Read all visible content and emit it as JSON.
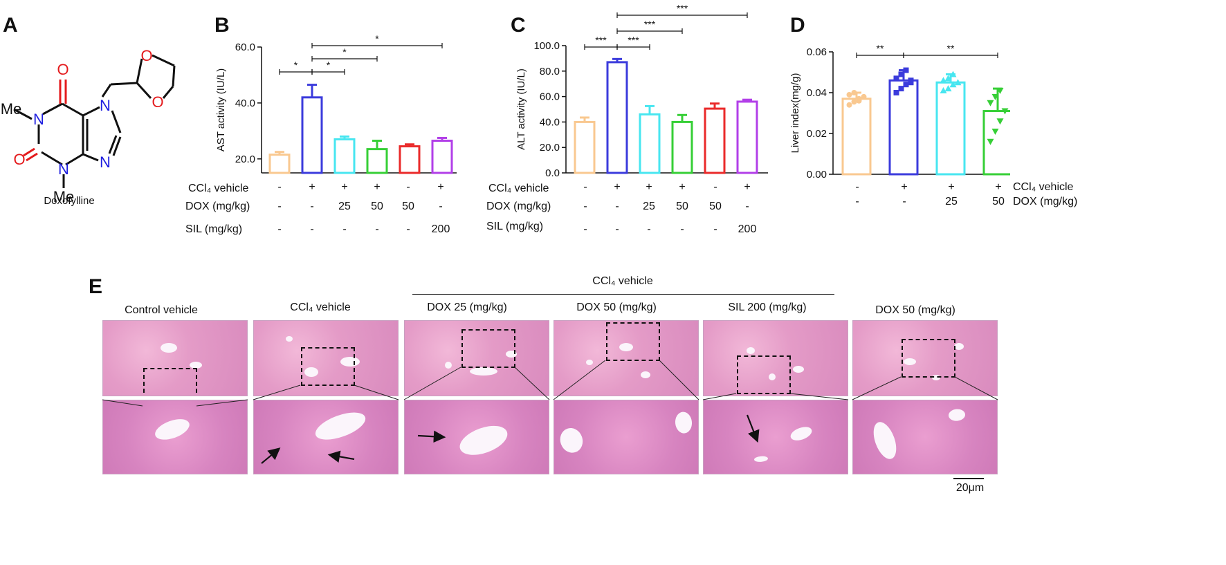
{
  "panel_labels": {
    "a": "A",
    "b": "B",
    "c": "C",
    "d": "D",
    "e": "E"
  },
  "molecule": {
    "name": "Doxofylline",
    "atoms": {
      "o_top": "O",
      "o_left": "O",
      "n1": "N",
      "n3": "N",
      "n7": "N",
      "n9": "N",
      "diox_o1": "O",
      "diox_o2": "O",
      "me1": "Me",
      "me2": "Me"
    },
    "colors": {
      "oxygen": "#e41a1c",
      "nitrogen": "#1f1fe0",
      "bond": "#111111"
    }
  },
  "treatment_rows": {
    "ccl4": "CCl₄ vehicle",
    "dox": "DOX (mg/kg)",
    "sil": "SIL   (mg/kg)",
    "b_ccl4": [
      "-",
      "+",
      "+",
      "+",
      "-",
      "+"
    ],
    "b_dox": [
      "-",
      "-",
      "25",
      "50",
      "50",
      "-"
    ],
    "b_sil": [
      "-",
      "-",
      "-",
      "-",
      "-",
      "200"
    ],
    "d_ccl4": [
      "-",
      "+",
      "+",
      "+"
    ],
    "d_dox": [
      "-",
      "-",
      "25",
      "50"
    ]
  },
  "chart_data": [
    {
      "id": "B",
      "type": "bar",
      "ylabel": "AST activity (IU/L)",
      "ylim": [
        15,
        60
      ],
      "yticks": [
        "20.0",
        "40.0",
        "60.0"
      ],
      "ytick_values": [
        20,
        40,
        60
      ],
      "categories": [
        "Control",
        "CCl4",
        "CCl4+DOX25",
        "CCl4+DOX50",
        "DOX50",
        "CCl4+SIL200"
      ],
      "values": [
        21.5,
        42,
        27,
        23.5,
        24.5,
        26.5
      ],
      "errors": [
        1.0,
        4.5,
        1.0,
        3.0,
        0.7,
        1.0
      ],
      "colors": [
        "#f9c890",
        "#3b3bdc",
        "#47e6f0",
        "#36cf36",
        "#ea2a2a",
        "#b23fe8"
      ],
      "significance": [
        {
          "from": 0,
          "to": 1,
          "label": "*",
          "level": 0
        },
        {
          "from": 1,
          "to": 2,
          "label": "*",
          "level": 0
        },
        {
          "from": 1,
          "to": 3,
          "label": "*",
          "level": 1
        },
        {
          "from": 1,
          "to": 5,
          "label": "*",
          "level": 2
        }
      ]
    },
    {
      "id": "C",
      "type": "bar",
      "ylabel": "ALT activity (IU/L)",
      "ylim": [
        0,
        100
      ],
      "yticks": [
        "0.0",
        "20.0",
        "40.0",
        "60.0",
        "80.0",
        "100.0"
      ],
      "ytick_values": [
        0,
        20,
        40,
        60,
        80,
        100
      ],
      "categories": [
        "Control",
        "CCl4",
        "CCl4+DOX25",
        "CCl4+DOX50",
        "DOX50",
        "CCl4+SIL200"
      ],
      "values": [
        40,
        87,
        46,
        40,
        50.5,
        56
      ],
      "errors": [
        3.5,
        2.5,
        6.5,
        5.5,
        4,
        1.5
      ],
      "colors": [
        "#f9c890",
        "#3b3bdc",
        "#47e6f0",
        "#36cf36",
        "#ea2a2a",
        "#b23fe8"
      ],
      "significance": [
        {
          "from": 0,
          "to": 1,
          "label": "***",
          "level": 0
        },
        {
          "from": 1,
          "to": 2,
          "label": "***",
          "level": 0
        },
        {
          "from": 1,
          "to": 3,
          "label": "***",
          "level": 1
        },
        {
          "from": 1,
          "to": 5,
          "label": "***",
          "level": 2
        }
      ]
    },
    {
      "id": "D",
      "type": "bar",
      "ylabel": "Liver index(mg/g)",
      "ylim": [
        0,
        0.06
      ],
      "yticks": [
        "0.00",
        "0.02",
        "0.04",
        "0.06"
      ],
      "ytick_values": [
        0,
        0.02,
        0.04,
        0.06
      ],
      "categories": [
        "Control",
        "CCl4",
        "CCl4+DOX25",
        "CCl4+DOX50"
      ],
      "values": [
        0.037,
        0.046,
        0.045,
        0.031
      ],
      "errors": [
        0.003,
        0.005,
        0.004,
        0.011
      ],
      "colors": [
        "#f9c890",
        "#3b3bdc",
        "#47e6f0",
        "#36cf36"
      ],
      "markers": [
        "circle",
        "square",
        "triangle",
        "triangle-down"
      ],
      "points": [
        [
          0.034,
          0.0355,
          0.037,
          0.038,
          0.039,
          0.04,
          0.036
        ],
        [
          0.04,
          0.042,
          0.044,
          0.046,
          0.047,
          0.049,
          0.051,
          0.045
        ],
        [
          0.041,
          0.042,
          0.044,
          0.045,
          0.046,
          0.047,
          0.049
        ],
        [
          0.016,
          0.021,
          0.026,
          0.031,
          0.035,
          0.038,
          0.041
        ]
      ],
      "significance": [
        {
          "from": 0,
          "to": 1,
          "label": "**",
          "level": 0
        },
        {
          "from": 1,
          "to": 3,
          "label": "**",
          "level": 0
        }
      ]
    }
  ],
  "histology": {
    "group_header": "CCl₄ vehicle",
    "titles": [
      "Control vehicle",
      "CCl₄ vehicle",
      "DOX 25 (mg/kg)",
      "DOX 50 (mg/kg)",
      "SIL 200 (mg/kg)",
      "DOX 50 (mg/kg)"
    ],
    "scale_bar": "20μm"
  }
}
